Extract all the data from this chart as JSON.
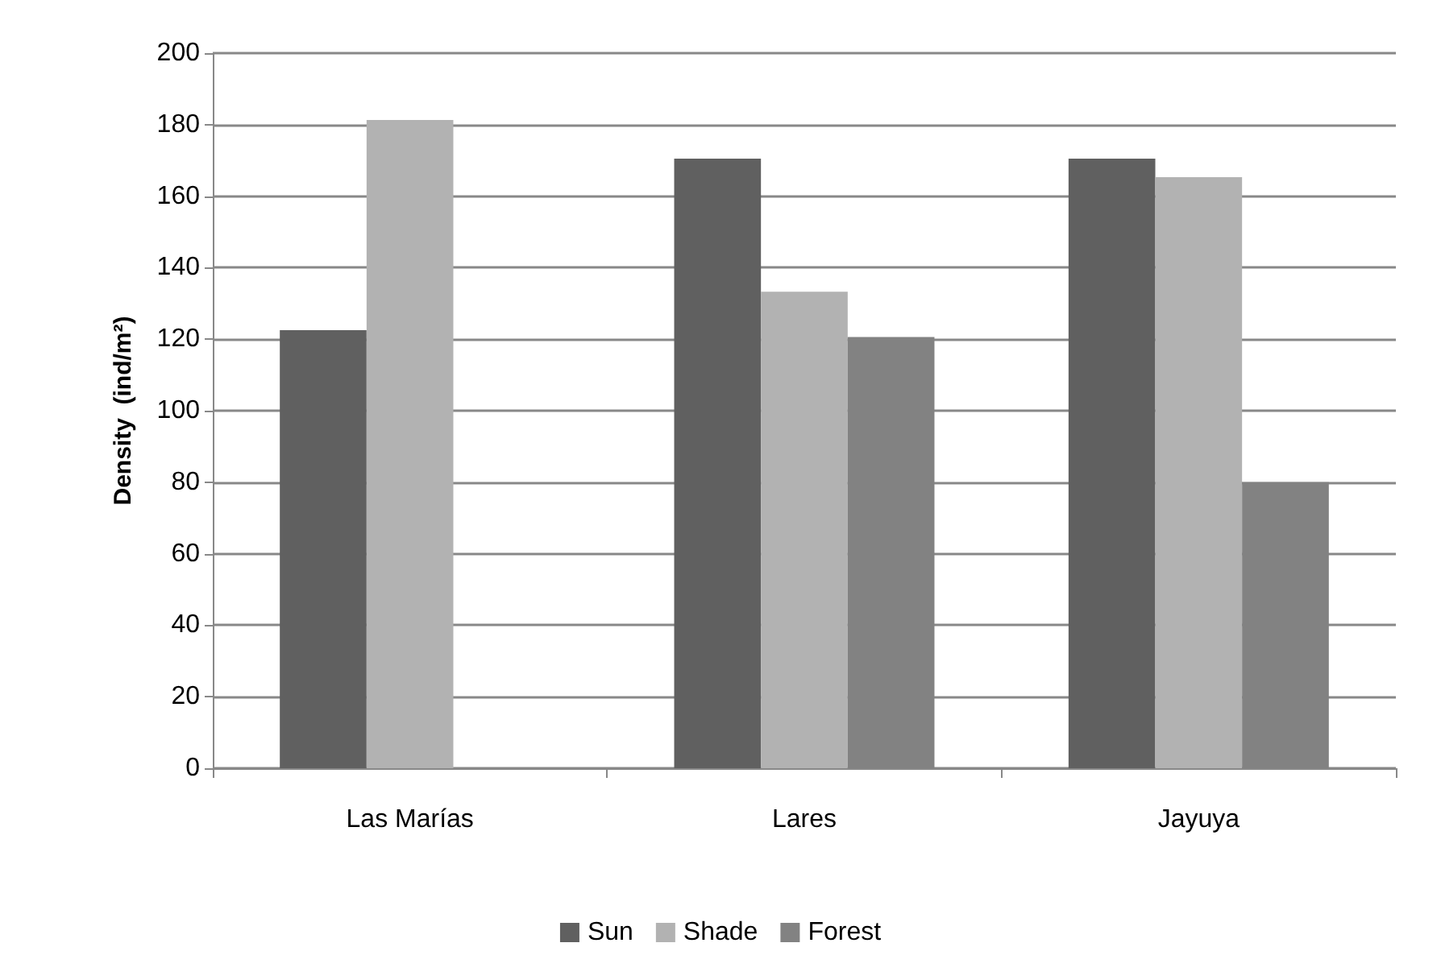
{
  "chart_data": {
    "type": "bar",
    "ylabel": "Density  (ind/m²)",
    "categories": [
      "Las Marías",
      "Lares",
      "Jayuya"
    ],
    "series": [
      {
        "name": "Sun",
        "color": "#606060",
        "values": [
          122.5,
          170.5,
          170.5
        ]
      },
      {
        "name": "Shade",
        "color": "#b2b2b2",
        "values": [
          181.3,
          133.3,
          165.3
        ]
      },
      {
        "name": "Forest",
        "color": "#828282",
        "values": [
          null,
          120.6,
          80
        ]
      }
    ],
    "ylim": [
      0,
      200
    ],
    "yticks": [
      0,
      20,
      40,
      60,
      80,
      100,
      120,
      140,
      160,
      180,
      200
    ],
    "grid": "y",
    "legend": "bottom"
  }
}
